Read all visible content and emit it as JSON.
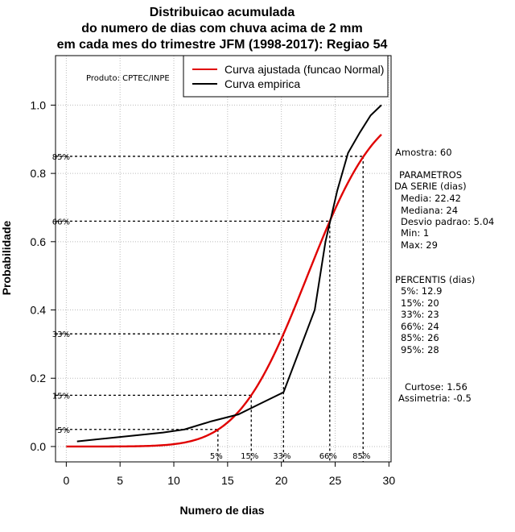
{
  "chart_data": {
    "type": "line",
    "title_lines": [
      "Distribuicao acumulada",
      "do numero de dias com chuva acima de 2 mm",
      "em cada mes do trimestre JFM (1998-2017): Regiao 54"
    ],
    "xlabel": "Numero de dias",
    "ylabel": "Probabilidade",
    "xlim": [
      -1,
      30.2
    ],
    "ylim": [
      -0.045,
      1.145
    ],
    "xticks": [
      0,
      5,
      10,
      15,
      20,
      25,
      30
    ],
    "yticks": [
      0.0,
      0.2,
      0.4,
      0.6,
      0.8,
      1.0
    ],
    "ytick_labels": [
      "0.0",
      "0.2",
      "0.4",
      "0.6",
      "0.8",
      "1.0"
    ],
    "grid": true,
    "producer_label": "Produto: CPTEC/INPE",
    "legend": {
      "position": "top-right",
      "entries": [
        {
          "label": "Curva ajustada (funcao Normal)",
          "color": "#e00000"
        },
        {
          "label": "Curva empirica",
          "color": "#000000"
        }
      ]
    },
    "series": [
      {
        "name": "Curva ajustada (funcao Normal)",
        "kind": "normal_cdf",
        "mean": 22.42,
        "sd": 5.04,
        "x_range": [
          0,
          29.3
        ],
        "color": "#e00000"
      },
      {
        "name": "Curva empirica",
        "color": "#000000",
        "x": [
          1,
          5,
          9,
          11,
          13.5,
          16,
          18,
          20.2,
          23.1,
          24.1,
          25.2,
          26.2,
          27.3,
          28.3,
          29.3
        ],
        "y": [
          0.015,
          0.028,
          0.041,
          0.05,
          0.074,
          0.094,
          0.125,
          0.159,
          0.4,
          0.6,
          0.75,
          0.86,
          0.92,
          0.97,
          1.0
        ]
      }
    ],
    "percentile_markers": [
      {
        "label": "5%",
        "prob": 0.05,
        "x": 14.1
      },
      {
        "label": "15%",
        "prob": 0.15,
        "x": 17.2
      },
      {
        "label": "33%",
        "prob": 0.33,
        "x": 20.2
      },
      {
        "label": "66%",
        "prob": 0.66,
        "x": 24.5
      },
      {
        "label": "85%",
        "prob": 0.85,
        "x": 27.6
      }
    ],
    "side_panel": {
      "sample": "Amostra: 60",
      "params_title_1": "PARAMETROS",
      "params_title_2": "DA SERIE (dias)",
      "params": [
        "Media: 22.42",
        "Mediana: 24",
        "Desvio padrao: 5.04",
        "Min: 1",
        "Max: 29"
      ],
      "percentiles_title": "PERCENTIS (dias)",
      "percentiles": [
        "5%: 12.9",
        "15%: 20",
        "33%: 23",
        "66%: 24",
        "85%: 26",
        "95%: 28"
      ],
      "kurtosis": "Curtose: 1.56",
      "skewness": "Assimetria: -0.5"
    }
  }
}
